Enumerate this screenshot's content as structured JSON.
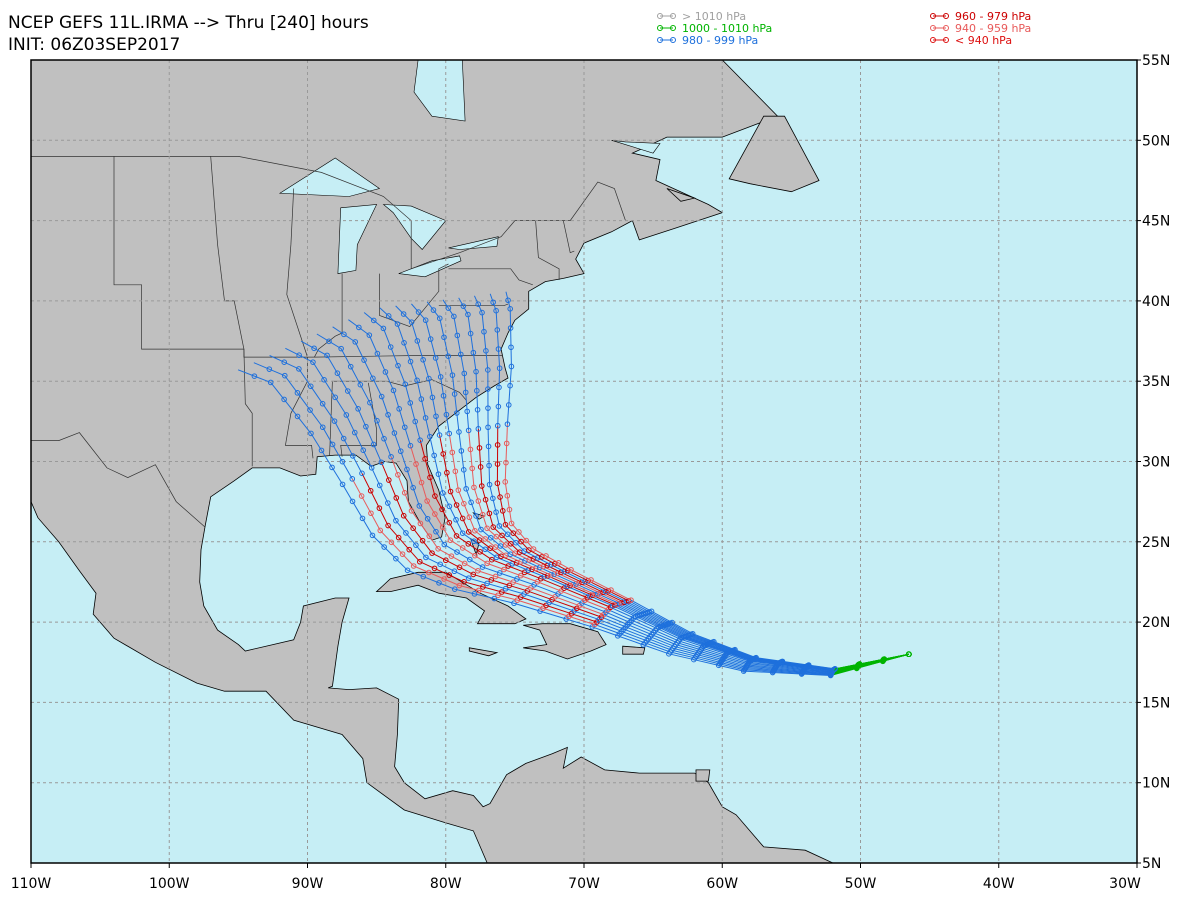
{
  "header": {
    "title": "NCEP GEFS 11L.IRMA --> Thru [240] hours",
    "init": "INIT: 06Z03SEP2017"
  },
  "legend": [
    {
      "label": "> 1010 hPa",
      "color": "#a0a0a0"
    },
    {
      "label": "1000 - 1010 hPa",
      "color": "#00b400"
    },
    {
      "label": "980 - 999 hPa",
      "color": "#1e70dc"
    },
    {
      "label": "960 - 979 hPa",
      "color": "#cc0000"
    },
    {
      "label": "940 - 959 hPa",
      "color": "#e85a5a"
    },
    {
      "label": "< 940 hPa",
      "color": "#dd1010"
    }
  ],
  "x_labels": [
    "110W",
    "100W",
    "90W",
    "80W",
    "70W",
    "60W",
    "50W",
    "40W",
    "30W"
  ],
  "y_labels": [
    "55N",
    "50N",
    "45N",
    "40N",
    "35N",
    "30N",
    "25N",
    "20N",
    "15N",
    "10N",
    "5N"
  ]
}
